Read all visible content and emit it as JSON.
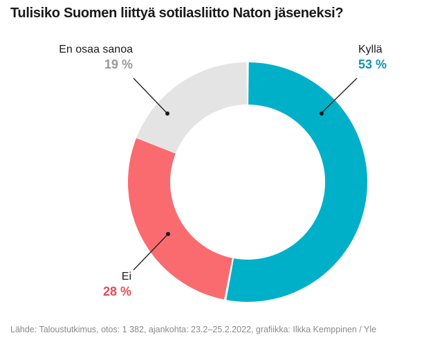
{
  "header": {
    "title": "Tulisiko Suomen liittyä sotilasliitto Naton jäseneksi?"
  },
  "chart_data": {
    "type": "pie",
    "variant": "donut",
    "title": "Tulisiko Suomen liittyä sotilasliitto Naton jäseneksi?",
    "unit": "%",
    "categories": [
      "Kyllä",
      "Ei",
      "En osaa sanoa"
    ],
    "values": [
      53,
      28,
      19
    ],
    "value_labels": [
      "53 %",
      "28 %",
      "19 %"
    ],
    "segment_colors": [
      "#00b0c8",
      "#f96b6f",
      "#e4e4e4"
    ],
    "value_label_colors": [
      "#0f94b0",
      "#e84b52",
      "#989898"
    ],
    "category_label_color": "#1a1a1a",
    "leader_line_color": "#222222",
    "start_angle_deg": 0,
    "direction": "clockwise",
    "inner_radius_ratio": 0.65,
    "legend": "callout-labels"
  },
  "footer": {
    "text": "Lähde: Taloustutkimus, otos: 1 382, ajankohta: 23.2–25.2.2022, grafiikka: Ilkka Kemppinen / Yle"
  }
}
